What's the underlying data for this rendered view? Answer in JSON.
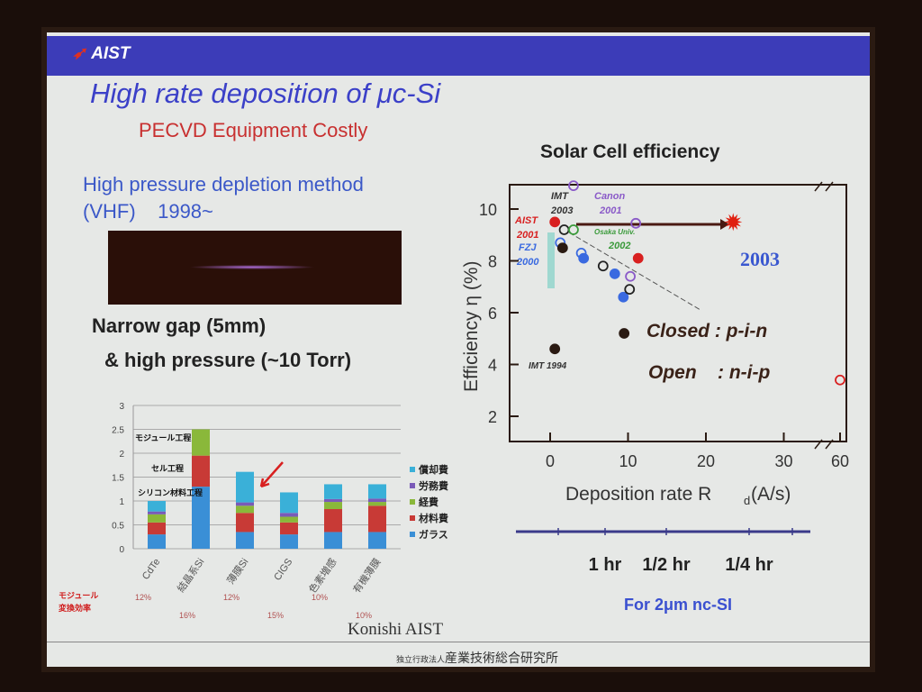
{
  "header": {
    "logo": "AIST"
  },
  "title": "High rate deposition of μc-Si",
  "subtitle": "PECVD Equipment Costly",
  "method_line1": "High pressure depletion method",
  "method_line2": "(VHF)    1998~",
  "gap_line1": "Narrow gap (5mm)",
  "gap_line2": "& high pressure (~10 Torr)",
  "credit": "Konishi AIST",
  "footer": {
    "small": "独立行政法人",
    "org": "産業技術総合研究所"
  },
  "timeline": {
    "labels": [
      "1 hr",
      "1/2 hr",
      "1/4 hr"
    ],
    "caption": "For 2μm nc-SI"
  },
  "chart_data": [
    {
      "type": "bar",
      "stacked": true,
      "categories": [
        "CdTe",
        "結晶系Si",
        "薄膜Si",
        "CIGS",
        "色素増感",
        "有機薄膜"
      ],
      "efficiencies": [
        "12%",
        "16%",
        "12%",
        "15%",
        "10%",
        "10%"
      ],
      "efficiency_label": [
        "モジュール",
        "変換効率"
      ],
      "process_labels": [
        "モジュール工程",
        "セル工程",
        "シリコン材料工程"
      ],
      "ylim": [
        0,
        3
      ],
      "yticks": [
        "0",
        "0.5",
        "1",
        "1.5",
        "2",
        "2.5",
        "3"
      ],
      "series": [
        {
          "name": "ガラス",
          "color": "#3a8fd6",
          "values": [
            0.3,
            1.3,
            0.35,
            0.3,
            0.35,
            0.35
          ]
        },
        {
          "name": "材料費",
          "color": "#c83a36",
          "values": [
            0.25,
            0.65,
            0.4,
            0.25,
            0.48,
            0.55
          ]
        },
        {
          "name": "経費",
          "color": "#8ab83a",
          "values": [
            0.17,
            0.55,
            0.15,
            0.12,
            0.15,
            0.08
          ]
        },
        {
          "name": "労務費",
          "color": "#7a5ab8",
          "values": [
            0.06,
            0,
            0.07,
            0.08,
            0.06,
            0.07
          ]
        },
        {
          "name": "償却費",
          "color": "#3ab0d8",
          "values": [
            0.22,
            0,
            0.64,
            0.43,
            0.31,
            0.3
          ]
        }
      ]
    },
    {
      "type": "scatter",
      "title": "Solar Cell efficiency",
      "xlabel": "Deposition rate R",
      "xlabel_sub": "d",
      "xlabel_unit": " (A/s)",
      "ylabel": "Efficiency η (%)",
      "xticks": [
        "0",
        "10",
        "20",
        "30",
        "60"
      ],
      "yticks": [
        "2",
        "4",
        "6",
        "8",
        "10"
      ],
      "annotation_year": "2003",
      "legend_closed": "Closed : p-i-n",
      "legend_open": "Open    : n-i-p",
      "point_labels": [
        [
          "IMT",
          "2003"
        ],
        [
          "Canon",
          "2001"
        ],
        [
          "AIST",
          "2001"
        ],
        [
          "Osaka Univ.",
          "2002"
        ],
        [
          "FZJ",
          "2000"
        ],
        [
          "IMT 1994"
        ]
      ],
      "points": [
        {
          "x": 0.6,
          "y": 9.5,
          "color": "#d82020",
          "filled": true
        },
        {
          "x": 1.8,
          "y": 9.2,
          "color": "#222",
          "filled": false
        },
        {
          "x": 3,
          "y": 9.2,
          "color": "#3a9a3a",
          "filled": false
        },
        {
          "x": 3,
          "y": 10.9,
          "color": "#8a5ac8",
          "filled": false
        },
        {
          "x": 11,
          "y": 9.45,
          "color": "#8a5ac8",
          "filled": false
        },
        {
          "x": 1.3,
          "y": 8.7,
          "color": "#3a6ae0",
          "filled": false
        },
        {
          "x": 1.6,
          "y": 8.5,
          "color": "#2a1a12",
          "filled": true
        },
        {
          "x": 4,
          "y": 8.3,
          "color": "#3a6ae0",
          "filled": false
        },
        {
          "x": 4.3,
          "y": 8.1,
          "color": "#3a6ae0",
          "filled": true
        },
        {
          "x": 6.8,
          "y": 7.8,
          "color": "#222",
          "filled": false
        },
        {
          "x": 8.3,
          "y": 7.5,
          "color": "#3a6ae0",
          "filled": true
        },
        {
          "x": 9.4,
          "y": 6.6,
          "color": "#3a6ae0",
          "filled": true
        },
        {
          "x": 10.3,
          "y": 7.4,
          "color": "#8a5ac8",
          "filled": false
        },
        {
          "x": 10.2,
          "y": 6.9,
          "color": "#222",
          "filled": false
        },
        {
          "x": 11.3,
          "y": 8.1,
          "color": "#d82020",
          "filled": true
        },
        {
          "x": 0.6,
          "y": 4.6,
          "color": "#2a1a12",
          "filled": true
        },
        {
          "x": 9.5,
          "y": 5.2,
          "color": "#2a1a12",
          "filled": true
        },
        {
          "x": 60,
          "y": 3.4,
          "color": "#d82020",
          "filled": false
        }
      ],
      "star": {
        "x": 23.5,
        "y": 9.5,
        "color": "#e02010"
      }
    }
  ]
}
